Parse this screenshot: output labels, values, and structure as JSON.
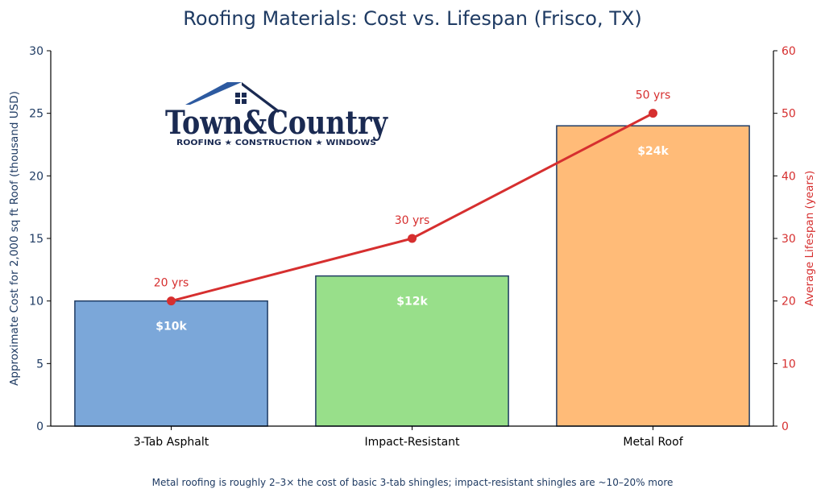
{
  "chart_data": {
    "type": "bar",
    "title": "Roofing Materials: Cost vs. Lifespan (Frisco, TX)",
    "categories": [
      "3-Tab Asphalt",
      "Impact-Resistant",
      "Metal Roof"
    ],
    "series": [
      {
        "name": "Approximate Cost",
        "type": "bar",
        "axis": "left",
        "values": [
          10,
          12,
          24
        ],
        "labels": [
          "$10k",
          "$12k",
          "$24k"
        ],
        "colors": [
          "#7ba7d9",
          "#98df8a",
          "#ffbb78"
        ]
      },
      {
        "name": "Average Lifespan",
        "type": "line",
        "axis": "right",
        "values": [
          20,
          30,
          50
        ],
        "labels": [
          "20 yrs",
          "30 yrs",
          "50 yrs"
        ],
        "color": "#d62f2f"
      }
    ],
    "ylabel": "Approximate Cost for 2,000 sq ft Roof (thousand USD)",
    "ylim": [
      0,
      30
    ],
    "yticks": [
      0,
      5,
      10,
      15,
      20,
      25,
      30
    ],
    "y2label": "Average Lifespan (years)",
    "y2lim": [
      0,
      60
    ],
    "y2ticks": [
      0,
      10,
      20,
      30,
      40,
      50,
      60
    ],
    "caption": "Metal roofing is roughly 2–3× the cost of basic 3-tab shingles; impact-resistant shingles are ~10–20% more"
  },
  "logo": {
    "name": "Town&Country",
    "tagline": "ROOFING ★ CONSTRUCTION ★ WINDOWS"
  },
  "colors": {
    "title": "#1f3b63",
    "left_axis": "#1f3b63",
    "right_axis": "#d62f2f",
    "bar_edge": "#1f3b63",
    "logo_navy": "#1a2a52",
    "logo_blue": "#2d5aa0"
  }
}
